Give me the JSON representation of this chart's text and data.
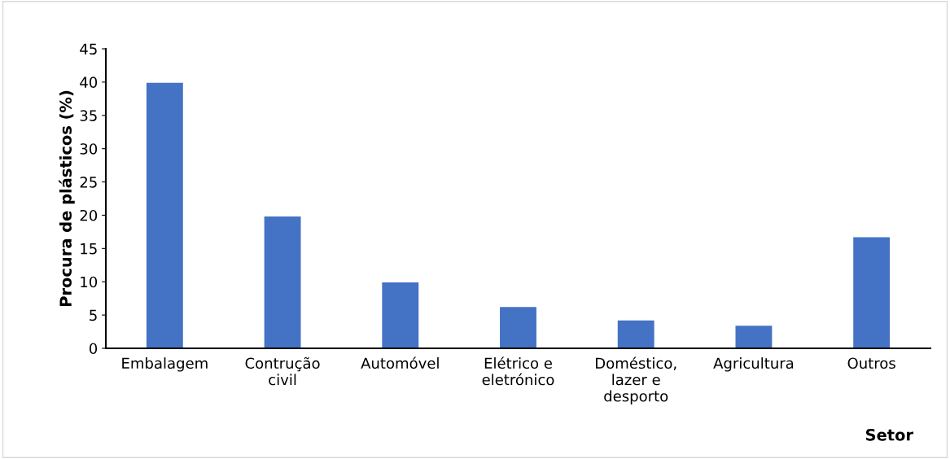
{
  "chart_data": {
    "type": "bar",
    "categories": [
      "Embalagem",
      "Contrução\ncivil",
      "Automóvel",
      "Elétrico e\neletrónico",
      "Doméstico,\nlazer e\ndesporto",
      "Agricultura",
      "Outros"
    ],
    "values": [
      39.9,
      19.8,
      9.9,
      6.2,
      4.2,
      3.4,
      16.7
    ],
    "color": "#4472c4",
    "xlabel": "Setor",
    "ylabel": "Procura de plásticos (%)",
    "ylim": [
      0,
      45
    ],
    "yticks": [
      0,
      5,
      10,
      15,
      20,
      25,
      30,
      35,
      40,
      45
    ],
    "grid": false
  }
}
